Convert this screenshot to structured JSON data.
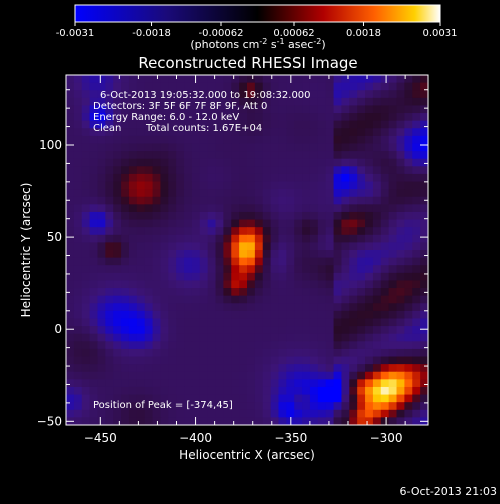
{
  "chart_data": {
    "type": "heatmap",
    "title": "Reconstructed RHESSI Image",
    "xlabel": "Heliocentric X (arcsec)",
    "ylabel": "Heliocentric Y (arcsec)",
    "xlim": [
      -468,
      -278
    ],
    "ylim": [
      -52,
      138
    ],
    "xticks": [
      -450,
      -400,
      -350,
      -300
    ],
    "yticks": [
      -50,
      0,
      50,
      100
    ],
    "colorbar": {
      "min": -0.0031,
      "max": 0.0031,
      "ticks": [
        -0.0031,
        -0.0018,
        -0.00062,
        0.00062,
        0.0018,
        0.0031
      ],
      "tick_labels": [
        "-0.0031",
        "-0.0018",
        "-0.00062",
        "0.00062",
        "0.0018",
        "0.0031"
      ],
      "unit_label": "(photons cm",
      "unit_sup1": "-2",
      "unit_mid1": " s",
      "unit_sup2": "-1",
      "unit_mid2": " asec",
      "unit_sup3": "-2",
      "unit_end": ")"
    },
    "annotations": [
      "6-Oct-2013 19:05:32.000 to 19:08:32.000",
      "Detectors: 3F 5F 6F 7F 8F 9F, Att 0",
      "Energy Range: 6.0 - 12.0 keV",
      "Clean",
      "Total counts: 1.67E+04",
      "Position of Peak = [-374,45]"
    ],
    "peak": [
      -374,
      45
    ],
    "timestamp": "6-Oct-2013 21:03"
  }
}
